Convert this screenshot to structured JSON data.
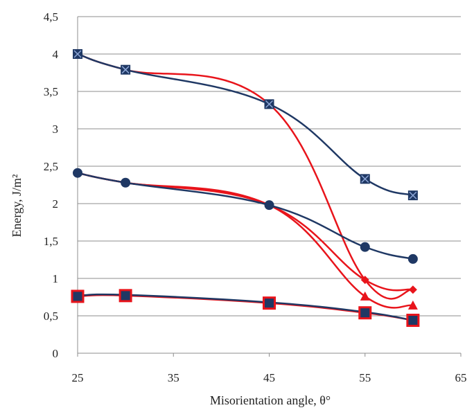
{
  "chart_data": {
    "type": "line",
    "title": "",
    "xlabel": "Misorientation angle, θ°",
    "ylabel": "Energy, J/m²",
    "xlim": [
      25,
      65
    ],
    "ylim": [
      0,
      4.5
    ],
    "x_ticks": [
      25,
      35,
      45,
      55,
      65
    ],
    "y_ticks": [
      0,
      0.5,
      1,
      1.5,
      2,
      2.5,
      3,
      3.5,
      4,
      4.5
    ],
    "x_tick_labels": [
      "25",
      "35",
      "45",
      "55",
      "65"
    ],
    "y_tick_labels": [
      "0",
      "0,5",
      "1",
      "1,5",
      "2",
      "2,5",
      "3",
      "3,5",
      "4",
      "4,5"
    ],
    "grid": "horizontal",
    "legend": "none",
    "series": [
      {
        "marker": "x-square",
        "color": "#1f3864",
        "x": [
          25,
          30,
          45,
          55,
          60
        ],
        "y": [
          4.0,
          3.79,
          3.33,
          2.33,
          2.11
        ]
      },
      {
        "marker": "circle",
        "color": "#1f3864",
        "x": [
          25,
          30,
          45,
          55,
          60
        ],
        "y": [
          2.41,
          2.28,
          1.98,
          1.42,
          1.26
        ]
      },
      {
        "marker": "none",
        "color": "#e8141b",
        "x": [
          25,
          30,
          45,
          55,
          60
        ],
        "y": [
          4.0,
          3.79,
          3.33,
          0.98,
          0.85
        ]
      },
      {
        "marker": "diamond",
        "color": "#e8141b",
        "x": [
          25,
          30,
          45,
          55,
          60
        ],
        "y": [
          2.41,
          2.28,
          1.98,
          0.98,
          0.85
        ]
      },
      {
        "marker": "triangle",
        "color": "#e8141b",
        "x": [
          25,
          30,
          45,
          55,
          60
        ],
        "y": [
          2.41,
          2.28,
          1.98,
          0.76,
          0.64
        ]
      },
      {
        "marker": "square",
        "color": "#e8141b",
        "x": [
          25,
          30,
          45,
          55,
          60
        ],
        "y": [
          0.76,
          0.77,
          0.67,
          0.54,
          0.44
        ]
      },
      {
        "marker": "none",
        "color": "#1f3864",
        "x": [
          25,
          30,
          45,
          55,
          60
        ],
        "y": [
          0.77,
          0.78,
          0.68,
          0.55,
          0.44
        ]
      }
    ]
  }
}
